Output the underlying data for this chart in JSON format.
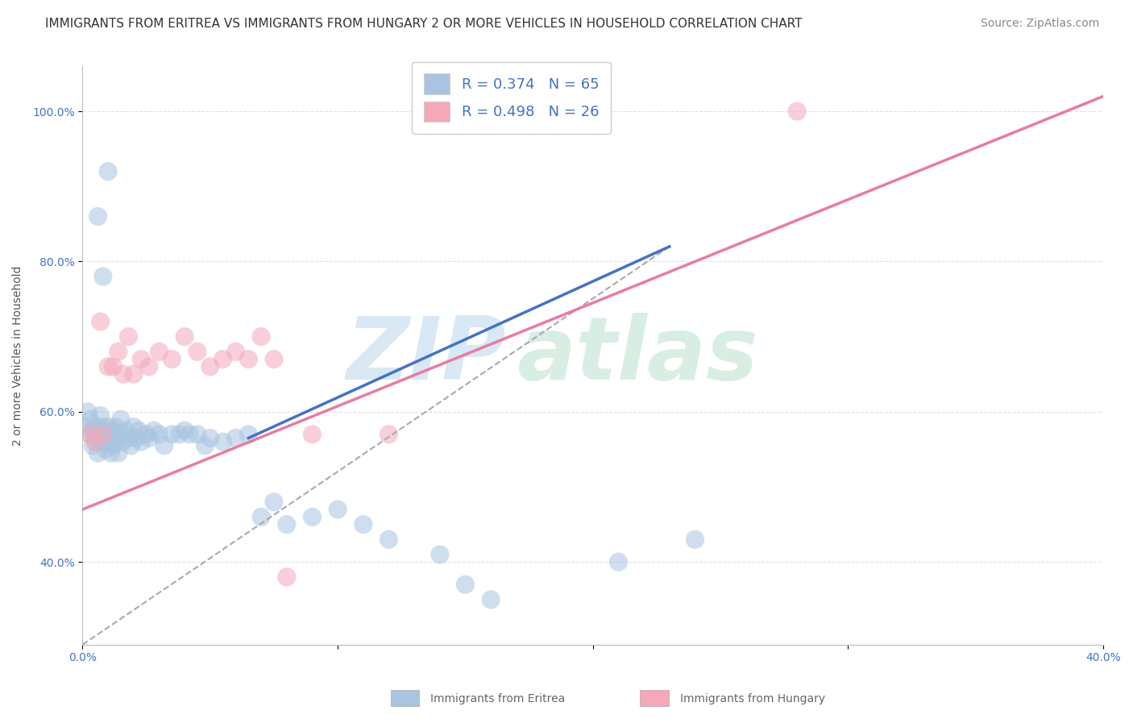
{
  "title": "IMMIGRANTS FROM ERITREA VS IMMIGRANTS FROM HUNGARY 2 OR MORE VEHICLES IN HOUSEHOLD CORRELATION CHART",
  "source": "Source: ZipAtlas.com",
  "ylabel": "2 or more Vehicles in Household",
  "legend_entries": [
    {
      "label": "R = 0.374   N = 65",
      "color": "#a8c4e0"
    },
    {
      "label": "R = 0.498   N = 26",
      "color": "#f4a8b8"
    }
  ],
  "legend_labels_bottom": [
    "Immigrants from Eritrea",
    "Immigrants from Hungary"
  ],
  "xlim": [
    0.0,
    0.4
  ],
  "ylim": [
    0.29,
    1.06
  ],
  "yticks": [
    0.4,
    0.6,
    0.8,
    1.0
  ],
  "ytick_labels": [
    "40.0%",
    "60.0%",
    "80.0%",
    "100.0%"
  ],
  "xticks": [
    0.0,
    0.1,
    0.2,
    0.3,
    0.4
  ],
  "xtick_labels": [
    "0.0%",
    "",
    "",
    "",
    "40.0%"
  ],
  "blue_scatter_x": [
    0.001,
    0.002,
    0.003,
    0.003,
    0.004,
    0.004,
    0.005,
    0.005,
    0.006,
    0.006,
    0.007,
    0.007,
    0.008,
    0.008,
    0.009,
    0.009,
    0.01,
    0.01,
    0.011,
    0.011,
    0.012,
    0.012,
    0.013,
    0.013,
    0.014,
    0.015,
    0.015,
    0.016,
    0.017,
    0.018,
    0.019,
    0.02,
    0.021,
    0.022,
    0.023,
    0.025,
    0.026,
    0.028,
    0.03,
    0.032,
    0.035,
    0.038,
    0.04,
    0.042,
    0.045,
    0.048,
    0.05,
    0.055,
    0.06,
    0.065,
    0.07,
    0.075,
    0.08,
    0.09,
    0.1,
    0.11,
    0.12,
    0.14,
    0.15,
    0.16,
    0.006,
    0.008,
    0.01,
    0.21,
    0.24
  ],
  "blue_scatter_y": [
    0.58,
    0.6,
    0.57,
    0.59,
    0.555,
    0.575,
    0.56,
    0.58,
    0.545,
    0.565,
    0.575,
    0.595,
    0.56,
    0.58,
    0.55,
    0.57,
    0.56,
    0.58,
    0.545,
    0.565,
    0.555,
    0.575,
    0.56,
    0.58,
    0.545,
    0.57,
    0.59,
    0.56,
    0.575,
    0.565,
    0.555,
    0.58,
    0.565,
    0.575,
    0.56,
    0.57,
    0.565,
    0.575,
    0.57,
    0.555,
    0.57,
    0.57,
    0.575,
    0.57,
    0.57,
    0.555,
    0.565,
    0.56,
    0.565,
    0.57,
    0.46,
    0.48,
    0.45,
    0.46,
    0.47,
    0.45,
    0.43,
    0.41,
    0.37,
    0.35,
    0.86,
    0.78,
    0.92,
    0.4,
    0.43
  ],
  "pink_scatter_x": [
    0.003,
    0.005,
    0.007,
    0.008,
    0.01,
    0.012,
    0.014,
    0.016,
    0.018,
    0.02,
    0.023,
    0.026,
    0.03,
    0.035,
    0.04,
    0.045,
    0.05,
    0.055,
    0.06,
    0.065,
    0.07,
    0.075,
    0.08,
    0.09,
    0.12,
    0.28
  ],
  "pink_scatter_y": [
    0.57,
    0.56,
    0.72,
    0.57,
    0.66,
    0.66,
    0.68,
    0.65,
    0.7,
    0.65,
    0.67,
    0.66,
    0.68,
    0.67,
    0.7,
    0.68,
    0.66,
    0.67,
    0.68,
    0.67,
    0.7,
    0.67,
    0.38,
    0.57,
    0.57,
    1.0
  ],
  "blue_line_x0": 0.065,
  "blue_line_y0": 0.565,
  "blue_line_x1": 0.23,
  "blue_line_y1": 0.82,
  "blue_line_dash_x0": 0.0,
  "blue_line_dash_y0": 0.29,
  "blue_line_dash_x1": 0.23,
  "blue_line_dash_y1": 0.82,
  "pink_line_x0": 0.0,
  "pink_line_y0": 0.47,
  "pink_line_x1": 0.4,
  "pink_line_y1": 1.02,
  "blue_line_color": "#4472c4",
  "pink_line_color": "#e87ca0",
  "scatter_blue_color": "#a8c4e0",
  "scatter_pink_color": "#f4a8b8",
  "watermark_zip_color": "#c8dff0",
  "watermark_atlas_color": "#c8e8d8",
  "background_color": "#ffffff",
  "grid_color": "#dddddd",
  "title_fontsize": 11,
  "axis_label_fontsize": 10,
  "tick_fontsize": 10,
  "legend_fontsize": 13,
  "source_fontsize": 10
}
